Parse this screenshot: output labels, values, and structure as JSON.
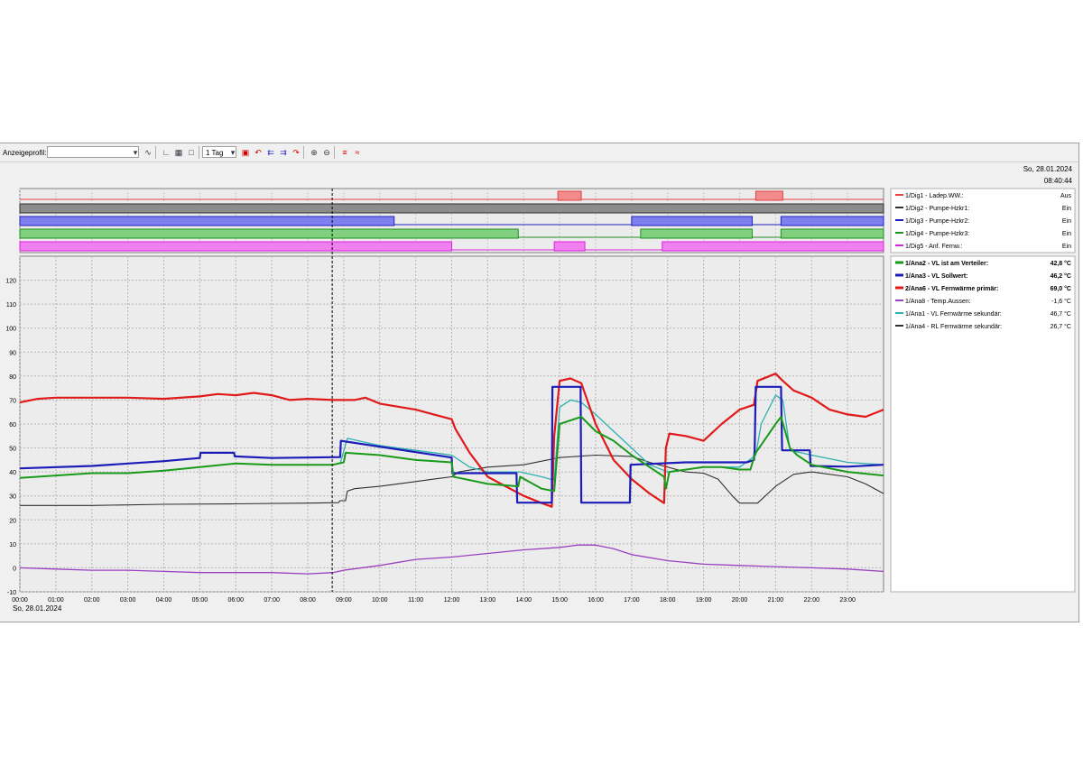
{
  "toolbar": {
    "profile_label": "Anzeigeprofil:",
    "profile_value": "",
    "range_value": "1 Tag",
    "icons": [
      "chart-add-icon",
      "axis-icon",
      "grid-icon",
      "frame-icon",
      "calendar-icon",
      "arrow-left-icon",
      "arrow-double-left-icon",
      "arrow-double-right-icon",
      "arrow-right-icon",
      "zoom-in-icon",
      "zoom-out-icon",
      "settings-icon",
      "cursor-icon"
    ]
  },
  "header": {
    "date": "So, 28.01.2024",
    "time": "08:40:44"
  },
  "chart_data": {
    "type": "line",
    "xlabel": "So, 28.01.2024",
    "x_ticks": [
      "00:00",
      "01:00",
      "02:00",
      "03:00",
      "04:00",
      "05:00",
      "06:00",
      "07:00",
      "08:00",
      "09:00",
      "10:00",
      "11:00",
      "12:00",
      "13:00",
      "14:00",
      "15:00",
      "16:00",
      "17:00",
      "18:00",
      "19:00",
      "20:00",
      "21:00",
      "22:00",
      "23:00"
    ],
    "xlim": [
      0,
      24
    ],
    "ylim": [
      -10,
      130
    ],
    "y_ticks": [
      -10,
      0,
      10,
      20,
      30,
      40,
      50,
      60,
      70,
      80,
      90,
      100,
      110,
      120
    ],
    "grid": true,
    "cursor_x": 8.68,
    "digital_series": [
      {
        "name": "1/Dig1 - Ladep.WW.:",
        "value": "Aus",
        "color": "#e84040",
        "fill": "#f28b8b",
        "on": [
          [
            14.95,
            15.6
          ],
          [
            20.45,
            21.2
          ]
        ]
      },
      {
        "name": "1/Dig2 - Pumpe-Hzkr1:",
        "value": "Ein",
        "color": "#303030",
        "fill": "#8c8c8c",
        "on": [
          [
            0,
            24
          ]
        ]
      },
      {
        "name": "1/Dig3 - Pumpe-Hzkr2:",
        "value": "Ein",
        "color": "#2020c0",
        "fill": "#7f7ff0",
        "on": [
          [
            0,
            10.4
          ],
          [
            17.0,
            20.35
          ],
          [
            21.15,
            24
          ]
        ]
      },
      {
        "name": "1/Dig4 - Pumpe-Hzkr3:",
        "value": "Ein",
        "color": "#209020",
        "fill": "#80d080",
        "on": [
          [
            0,
            13.85
          ],
          [
            17.25,
            20.35
          ],
          [
            21.15,
            24
          ]
        ]
      },
      {
        "name": "1/Dig5 - Anf. Fernw.:",
        "value": "Ein",
        "color": "#e020e0",
        "fill": "#f080f0",
        "on": [
          [
            0,
            12.0
          ],
          [
            14.85,
            15.7
          ],
          [
            17.85,
            24
          ]
        ]
      }
    ],
    "series": [
      {
        "name": "1/Ana2 - VL ist am Verteiler:",
        "value": "42,8 °C",
        "color": "#1a9a1a",
        "width": 2,
        "bold": true,
        "points": [
          [
            0,
            37.5
          ],
          [
            1,
            38.5
          ],
          [
            2,
            39.5
          ],
          [
            3,
            39.5
          ],
          [
            4,
            40.5
          ],
          [
            5,
            42
          ],
          [
            6,
            43.5
          ],
          [
            7,
            43
          ],
          [
            8,
            43
          ],
          [
            8.7,
            43
          ],
          [
            9.0,
            44
          ],
          [
            9.05,
            48
          ],
          [
            10,
            47
          ],
          [
            11,
            45
          ],
          [
            12,
            44
          ],
          [
            12.05,
            38
          ],
          [
            13,
            35
          ],
          [
            13.85,
            34
          ],
          [
            13.9,
            38
          ],
          [
            14.5,
            33
          ],
          [
            14.85,
            32
          ],
          [
            15.0,
            60
          ],
          [
            15.6,
            63
          ],
          [
            16,
            57
          ],
          [
            16.5,
            53
          ],
          [
            17,
            47
          ],
          [
            17.5,
            42
          ],
          [
            17.9,
            38
          ],
          [
            17.95,
            33
          ],
          [
            18.05,
            40
          ],
          [
            19,
            42
          ],
          [
            19.5,
            42
          ],
          [
            20,
            41
          ],
          [
            20.3,
            41
          ],
          [
            20.4,
            46
          ],
          [
            20.45,
            48
          ],
          [
            21.0,
            60
          ],
          [
            21.15,
            63
          ],
          [
            21.4,
            50
          ],
          [
            21.6,
            47
          ],
          [
            22,
            43
          ],
          [
            23,
            40
          ],
          [
            24,
            38.5
          ]
        ]
      },
      {
        "name": "1/Ana3 - VL Sollwert:",
        "value": "46,2 °C",
        "color": "#1c1cb8",
        "width": 2.2,
        "bold": true,
        "points": [
          [
            0,
            41.5
          ],
          [
            2,
            42.5
          ],
          [
            4,
            44.5
          ],
          [
            5,
            45.8
          ],
          [
            5.02,
            48
          ],
          [
            5.95,
            48
          ],
          [
            5.97,
            46.5
          ],
          [
            7,
            45.8
          ],
          [
            8.9,
            46.2
          ],
          [
            8.92,
            53
          ],
          [
            12.0,
            46
          ],
          [
            12.02,
            39.5
          ],
          [
            13.8,
            39.5
          ],
          [
            13.82,
            27.2
          ],
          [
            14.78,
            27.2
          ],
          [
            14.8,
            75.5
          ],
          [
            15.58,
            75.5
          ],
          [
            15.6,
            27.2
          ],
          [
            16.95,
            27.2
          ],
          [
            16.97,
            43
          ],
          [
            18.5,
            44
          ],
          [
            19.5,
            44
          ],
          [
            20.2,
            44
          ],
          [
            20.4,
            45
          ],
          [
            20.42,
            49
          ],
          [
            20.45,
            75.5
          ],
          [
            21.15,
            75.5
          ],
          [
            21.18,
            49
          ],
          [
            21.95,
            49
          ],
          [
            21.97,
            42.5
          ],
          [
            23,
            42.2
          ],
          [
            24,
            43
          ]
        ]
      },
      {
        "name": "2/Ana6 - VL Fernwärme primär:",
        "value": "69,0 °C",
        "color": "#e01a1a",
        "width": 2.2,
        "bold": true,
        "points": [
          [
            0,
            69
          ],
          [
            0.5,
            70.5
          ],
          [
            1,
            71
          ],
          [
            2,
            71
          ],
          [
            3,
            71
          ],
          [
            4,
            70.5
          ],
          [
            5,
            71.5
          ],
          [
            5.5,
            72.5
          ],
          [
            6,
            72
          ],
          [
            6.5,
            73
          ],
          [
            7,
            72
          ],
          [
            7.5,
            70
          ],
          [
            8,
            70.5
          ],
          [
            8.7,
            70
          ],
          [
            9.3,
            70
          ],
          [
            9.6,
            71
          ],
          [
            10,
            68.5
          ],
          [
            11,
            66
          ],
          [
            11.5,
            64
          ],
          [
            12,
            62
          ],
          [
            12.1,
            58
          ],
          [
            12.5,
            48
          ],
          [
            13,
            38
          ],
          [
            13.5,
            34
          ],
          [
            14,
            30
          ],
          [
            14.5,
            27
          ],
          [
            14.78,
            25.5
          ],
          [
            14.85,
            55
          ],
          [
            15.0,
            78
          ],
          [
            15.3,
            79
          ],
          [
            15.6,
            77
          ],
          [
            16,
            60
          ],
          [
            16.5,
            45
          ],
          [
            17,
            37
          ],
          [
            17.5,
            31
          ],
          [
            17.9,
            27
          ],
          [
            17.95,
            50
          ],
          [
            18.05,
            56
          ],
          [
            18.5,
            55
          ],
          [
            19,
            53
          ],
          [
            19.5,
            60
          ],
          [
            20,
            66
          ],
          [
            20.4,
            68
          ],
          [
            20.5,
            78
          ],
          [
            21,
            81
          ],
          [
            21.2,
            78
          ],
          [
            21.5,
            74
          ],
          [
            22,
            71
          ],
          [
            22.5,
            66
          ],
          [
            23,
            64
          ],
          [
            23.5,
            63
          ],
          [
            24,
            66
          ]
        ]
      },
      {
        "name": "1/Ana8 - Temp.Aussen:",
        "value": "-1,6 °C",
        "color": "#9a40c0",
        "width": 1.3,
        "bold": false,
        "points": [
          [
            0,
            0
          ],
          [
            1,
            -0.5
          ],
          [
            2,
            -1
          ],
          [
            3,
            -1
          ],
          [
            4,
            -1.5
          ],
          [
            5,
            -2
          ],
          [
            6,
            -2
          ],
          [
            7,
            -2
          ],
          [
            8,
            -2.5
          ],
          [
            8.7,
            -2
          ],
          [
            9,
            -1
          ],
          [
            10,
            1
          ],
          [
            11,
            3.5
          ],
          [
            12,
            4.5
          ],
          [
            13,
            6
          ],
          [
            14,
            7.5
          ],
          [
            15,
            8.5
          ],
          [
            15.5,
            9.5
          ],
          [
            16,
            9.5
          ],
          [
            16.5,
            8
          ],
          [
            17,
            5.5
          ],
          [
            18,
            3
          ],
          [
            19,
            1.5
          ],
          [
            20,
            1
          ],
          [
            21,
            0.5
          ],
          [
            22,
            0
          ],
          [
            23,
            -0.5
          ],
          [
            24,
            -1.5
          ]
        ]
      },
      {
        "name": "1/Ana1 - VL Fernwärme sekundär:",
        "value": "46,7 °C",
        "color": "#30b0b0",
        "width": 1.3,
        "bold": false,
        "points": [
          [
            8.9,
            43.5
          ],
          [
            9.1,
            54
          ],
          [
            10,
            51
          ],
          [
            11,
            49
          ],
          [
            12,
            47
          ],
          [
            12.5,
            42
          ],
          [
            13,
            40
          ],
          [
            13.9,
            40
          ],
          [
            14.5,
            38
          ],
          [
            14.85,
            36.5
          ],
          [
            15.0,
            67
          ],
          [
            15.3,
            70
          ],
          [
            15.6,
            69
          ],
          [
            16,
            64
          ],
          [
            16.5,
            57
          ],
          [
            17,
            50
          ],
          [
            17.5,
            43
          ],
          [
            18,
            40
          ],
          [
            19,
            42
          ],
          [
            20,
            42
          ],
          [
            20.45,
            47
          ],
          [
            20.6,
            60
          ],
          [
            21,
            72
          ],
          [
            21.2,
            70
          ],
          [
            21.4,
            49
          ],
          [
            22,
            47
          ],
          [
            23,
            44
          ],
          [
            24,
            43
          ]
        ]
      },
      {
        "name": "1/Ana4 - RL Fernwärme sekundär:",
        "value": "26,7 °C",
        "color": "#303030",
        "width": 1.1,
        "bold": false,
        "points": [
          [
            0,
            26
          ],
          [
            2,
            26
          ],
          [
            4,
            26.5
          ],
          [
            6,
            26.7
          ],
          [
            8,
            27
          ],
          [
            8.85,
            27.2
          ],
          [
            8.9,
            28
          ],
          [
            9.05,
            28
          ],
          [
            9.1,
            32
          ],
          [
            9.3,
            33
          ],
          [
            10,
            34
          ],
          [
            11,
            36
          ],
          [
            11.5,
            37
          ],
          [
            12,
            38
          ],
          [
            12.2,
            40
          ],
          [
            13,
            42
          ],
          [
            14,
            43
          ],
          [
            15,
            46
          ],
          [
            16,
            47
          ],
          [
            17,
            46.5
          ],
          [
            17.5,
            44
          ],
          [
            18,
            42
          ],
          [
            18.5,
            40
          ],
          [
            19,
            39.5
          ],
          [
            19.4,
            37
          ],
          [
            19.8,
            30
          ],
          [
            20,
            27
          ],
          [
            20.5,
            27
          ],
          [
            21,
            34
          ],
          [
            21.5,
            39
          ],
          [
            22,
            40
          ],
          [
            23,
            38
          ],
          [
            23.5,
            35
          ],
          [
            24,
            31
          ]
        ]
      }
    ]
  }
}
